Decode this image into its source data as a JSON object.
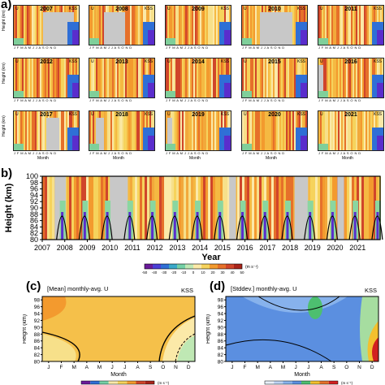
{
  "panel_labels": {
    "a": "a)",
    "b": "b)",
    "c": "(c)",
    "d": "(d)"
  },
  "small_panels": {
    "tag_u": "U",
    "tag_station": "KSS",
    "month_initials": "J F M A M J J A S O N D",
    "ylabel": "Height (km)",
    "xlabel": "Month",
    "years": [
      "2007",
      "2008",
      "2009",
      "2010",
      "2011",
      "2012",
      "2013",
      "2014",
      "2015",
      "2016",
      "2017",
      "2018",
      "2019",
      "2020",
      "2021"
    ]
  },
  "colors": {
    "westward_strong": "#5a2dcc",
    "westward": "#2f6fd6",
    "neutral": "#f6e39a",
    "eastward": "#f39a2e",
    "eastward_strong": "#c4281e",
    "no_data": "#c8c8c8"
  },
  "chart_data": [
    {
      "type": "heatmap",
      "panel": "b",
      "ylabel": "Height (km)",
      "xlabel": "Year",
      "y_ticks": [
        80,
        82,
        84,
        86,
        88,
        90,
        92,
        94,
        96,
        98,
        100
      ],
      "ylim": [
        80,
        100
      ],
      "x_ticks": [
        "2007",
        "2008",
        "2009",
        "2010",
        "2011",
        "2012",
        "2013",
        "2014",
        "2015",
        "2016",
        "2017",
        "2018",
        "2019",
        "2020",
        "2021"
      ],
      "colorbar_ticks": [
        "-50",
        "-40",
        "-30",
        "-20",
        "-10",
        "0",
        "10",
        "20",
        "30",
        "40",
        "50"
      ],
      "colorbar_unit": "(m s⁻¹)"
    },
    {
      "type": "heatmap",
      "panel": "c",
      "title": "[Mean] monthly-avg. U",
      "station": "KSS",
      "ylabel": "Height (km)",
      "xlabel": "Month",
      "x_ticks": [
        "J",
        "F",
        "M",
        "A",
        "M",
        "J",
        "J",
        "A",
        "S",
        "O",
        "N",
        "D"
      ],
      "y_ticks": [
        80,
        82,
        84,
        86,
        88,
        90,
        92,
        94,
        96,
        98
      ],
      "ylim": [
        80,
        99
      ],
      "colorbar_unit": "(m s⁻¹)"
    },
    {
      "type": "heatmap",
      "panel": "d",
      "title": "[Stddev.] monthly-avg. U",
      "station": "KSS",
      "ylabel": "Height (km)",
      "xlabel": "Month",
      "x_ticks": [
        "J",
        "F",
        "M",
        "A",
        "M",
        "J",
        "J",
        "A",
        "S",
        "O",
        "N",
        "D"
      ],
      "y_ticks": [
        80,
        82,
        84,
        86,
        88,
        90,
        92,
        94,
        96,
        98
      ],
      "ylim": [
        80,
        99
      ],
      "colorbar_unit": "(m s⁻¹)"
    }
  ]
}
